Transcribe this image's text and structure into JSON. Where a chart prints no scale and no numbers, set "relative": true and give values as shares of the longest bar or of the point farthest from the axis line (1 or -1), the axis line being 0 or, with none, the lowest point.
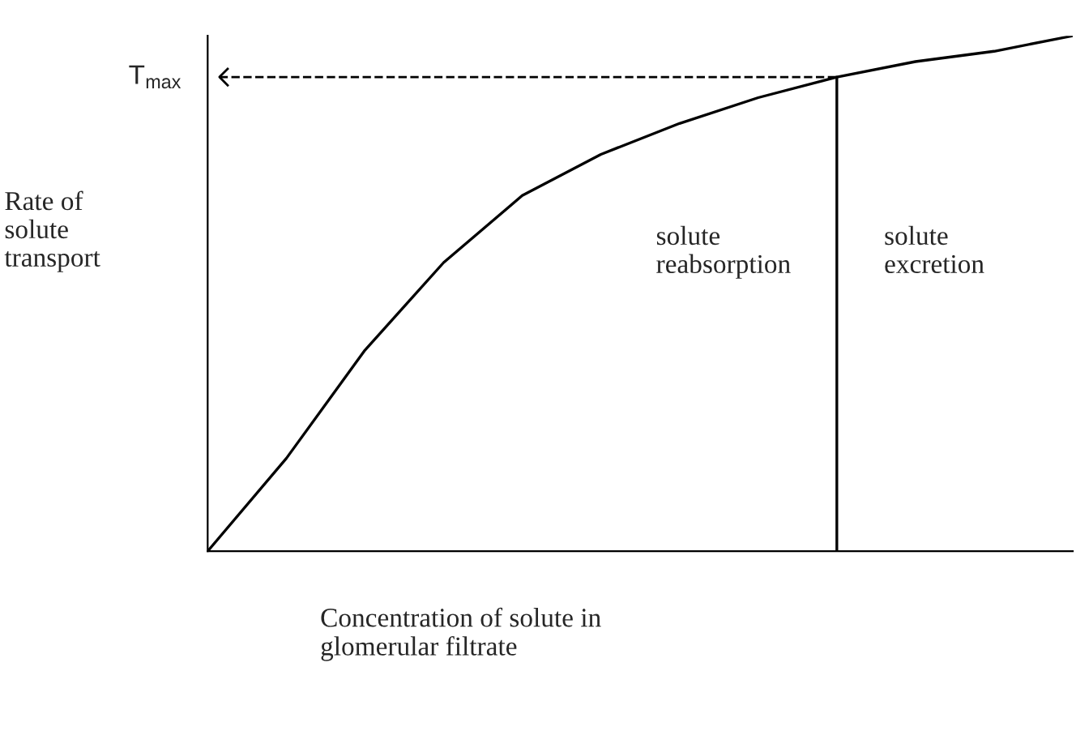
{
  "chart_data": {
    "type": "line",
    "relative": true,
    "xlabel": "Concentration of solute in\nglomerular filtrate",
    "ylabel": "Rate of\nsolute\ntransport",
    "categories": [
      null,
      null,
      null,
      null,
      null,
      null,
      null,
      null,
      null,
      null,
      null,
      null
    ],
    "series": [
      {
        "color": "#000000",
        "values": [
          0,
          0.18,
          0.39,
          0.56,
          0.69,
          0.77,
          0.83,
          0.88,
          0.92,
          0.95,
          0.97,
          1.0
        ]
      }
    ],
    "ref_lines": [
      {
        "axis": "y",
        "value": 0.92,
        "label": "T$_{max}$",
        "line_style": "dashed"
      }
    ],
    "annotations": [
      "solute\nreabsorption",
      "solute\nexcretion"
    ],
    "tick_labels": false,
    "legend": false
  }
}
